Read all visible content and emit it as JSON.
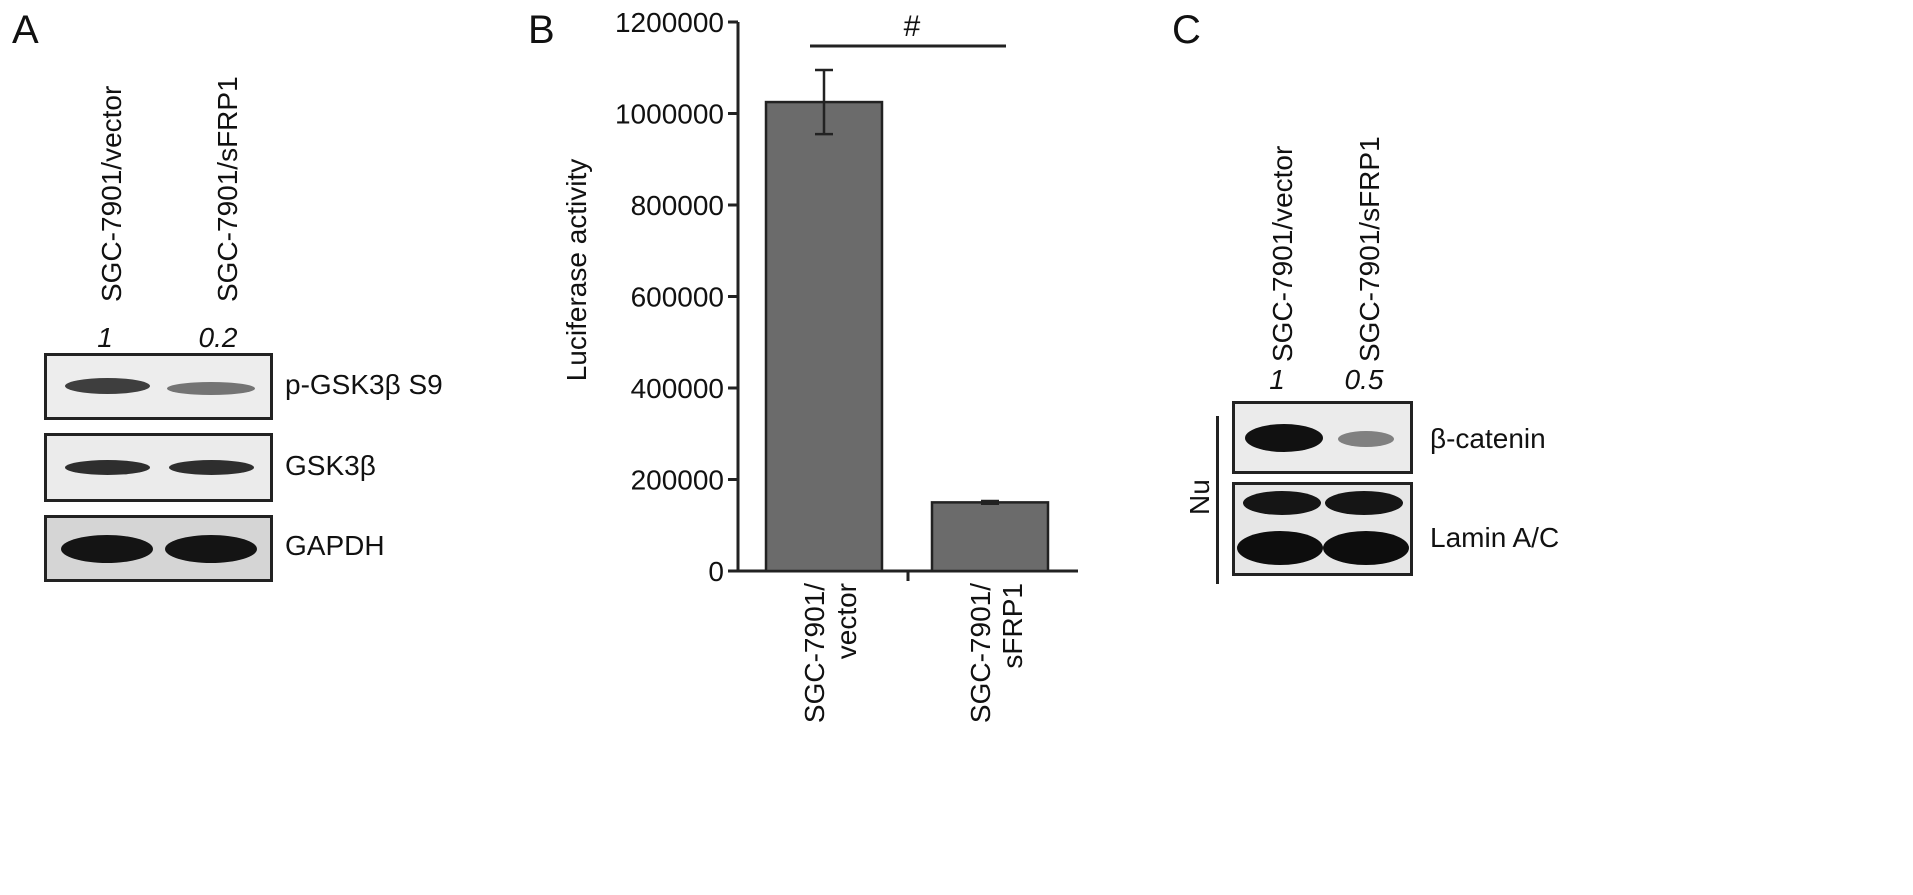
{
  "panels": {
    "a": {
      "letter": "A",
      "lanes": [
        "SGC-7901/vector",
        "SGC-7901/sFRP1"
      ],
      "ratios": [
        "1",
        "0.2"
      ],
      "blots": [
        {
          "label": "p-GSK3β S9",
          "intensity": [
            0.55,
            0.35
          ]
        },
        {
          "label": "GSK3β",
          "intensity": [
            0.55,
            0.55
          ]
        },
        {
          "label": "GAPDH",
          "intensity": [
            0.9,
            0.9
          ]
        }
      ]
    },
    "b": {
      "letter": "B"
    },
    "c": {
      "letter": "C",
      "lanes": [
        "SGC-7901/vector",
        "SGC-7901/sFRP1"
      ],
      "ratios": [
        "1",
        "0.5"
      ],
      "group_label": "Nu",
      "blots": [
        {
          "label": "β-catenin",
          "intensity": [
            0.85,
            0.4
          ]
        },
        {
          "label": "Lamin A/C",
          "intensity": [
            0.85,
            0.85
          ]
        }
      ]
    }
  },
  "chart_data": {
    "type": "bar",
    "categories": [
      [
        "SGC-7901/",
        "vector"
      ],
      [
        "SGC-7901/",
        "sFRP1"
      ]
    ],
    "values": [
      1025000,
      150000
    ],
    "errors": [
      70000,
      3000
    ],
    "ylabel": "Luciferase activity",
    "ylim": [
      0,
      1200000
    ],
    "yticks": [
      "0",
      "200000",
      "400000",
      "600000",
      "800000",
      "1000000",
      "1200000"
    ],
    "significance": "#",
    "bar_color": "#6b6b6b"
  }
}
